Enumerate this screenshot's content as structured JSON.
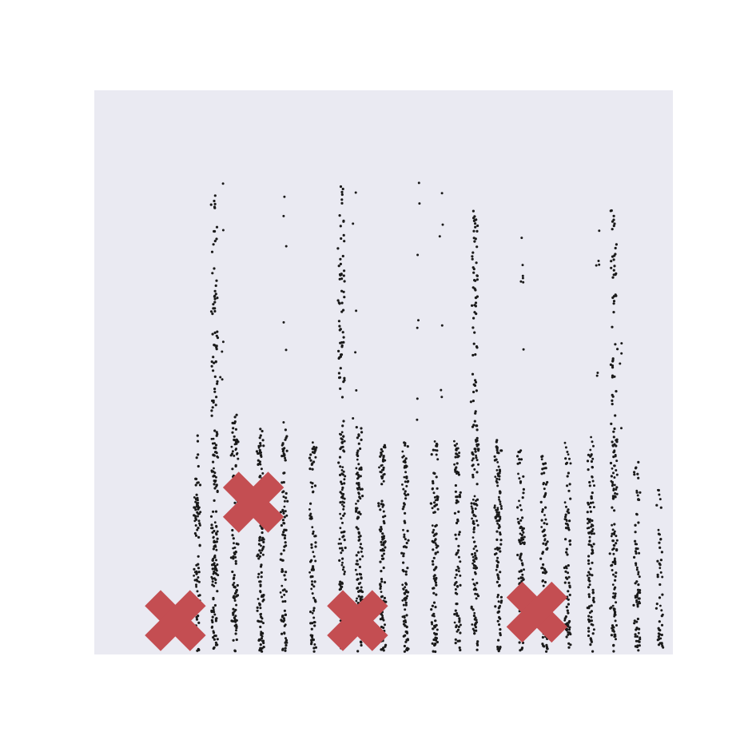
{
  "chart_data": {
    "type": "scatter",
    "grid": false,
    "axes_visible": false,
    "colors": {
      "plot_background": "#eaeaf2",
      "points": "#1a1a1a",
      "markers": "#c44e52"
    },
    "xlim": [
      0,
      10
    ],
    "ylim": [
      0,
      10
    ],
    "series": [
      {
        "marker": "dot",
        "column_x": [
          1.8,
          2.1,
          2.45,
          2.9,
          3.3,
          3.8,
          4.3,
          4.6,
          5.0,
          5.4,
          5.9,
          6.3,
          6.6,
          7.0,
          7.4,
          7.8,
          8.2,
          8.6,
          9.0,
          9.4,
          9.8
        ],
        "column_top": [
          3.9,
          8.2,
          4.3,
          4.1,
          4.0,
          3.8,
          8.3,
          4.1,
          3.8,
          3.8,
          3.8,
          3.7,
          7.9,
          3.8,
          3.7,
          3.6,
          3.6,
          3.7,
          7.9,
          3.5,
          3.0
        ],
        "points_per_column": [
          60,
          130,
          90,
          95,
          70,
          60,
          120,
          90,
          80,
          75,
          75,
          60,
          120,
          80,
          70,
          65,
          60,
          75,
          110,
          55,
          35
        ],
        "outlier_columns": [
          2.2,
          3.3,
          4.5,
          5.6,
          6.0,
          7.4,
          8.7,
          9.1
        ],
        "outlier_range": [
          4.0,
          8.4
        ]
      },
      {
        "marker": "X",
        "x": [
          1.4,
          2.75,
          4.55,
          7.65
        ],
        "y": [
          0.6,
          2.7,
          0.6,
          0.75
        ]
      }
    ]
  }
}
